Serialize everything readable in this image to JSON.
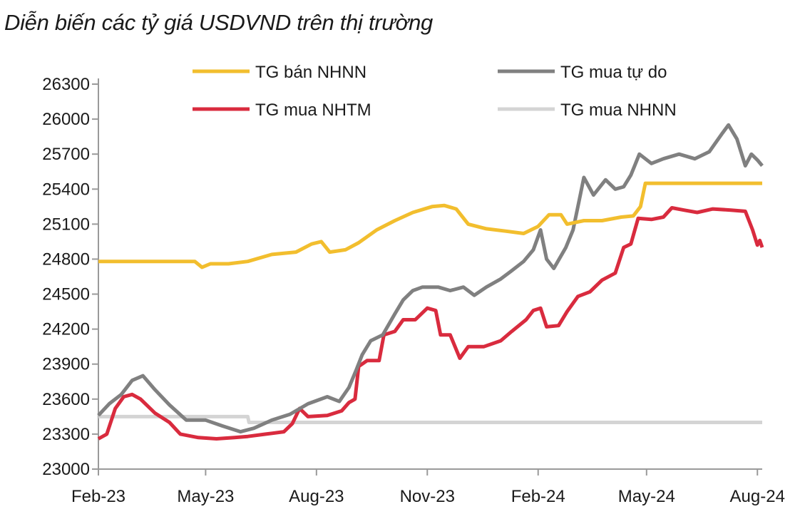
{
  "chart_data": {
    "type": "line",
    "title": "Diễn biến các tỷ giá USDVND trên thị trường",
    "xlabel": "",
    "ylabel": "",
    "x_ticks": [
      "Feb-23",
      "May-23",
      "Aug-23",
      "Nov-23",
      "Feb-24",
      "May-24",
      "Aug-24"
    ],
    "y_ticks": [
      23000,
      23300,
      23600,
      23900,
      24200,
      24500,
      24800,
      25100,
      25400,
      25700,
      26000,
      26300
    ],
    "ylim": [
      23000,
      26300
    ],
    "xlim": [
      "2023-02-01",
      "2024-08-05"
    ],
    "grid": false,
    "legend": "top",
    "series": [
      {
        "name": "TG bán NHNN",
        "color": "#F2BE2E",
        "points": [
          [
            "2023-02-01",
            24780
          ],
          [
            "2023-03-10",
            24780
          ],
          [
            "2023-04-22",
            24780
          ],
          [
            "2023-04-28",
            24730
          ],
          [
            "2023-05-05",
            24760
          ],
          [
            "2023-05-20",
            24760
          ],
          [
            "2023-06-05",
            24780
          ],
          [
            "2023-06-25",
            24840
          ],
          [
            "2023-07-15",
            24860
          ],
          [
            "2023-07-28",
            24930
          ],
          [
            "2023-08-05",
            24950
          ],
          [
            "2023-08-12",
            24860
          ],
          [
            "2023-08-25",
            24880
          ],
          [
            "2023-09-05",
            24940
          ],
          [
            "2023-09-20",
            25050
          ],
          [
            "2023-10-05",
            25130
          ],
          [
            "2023-10-20",
            25200
          ],
          [
            "2023-11-05",
            25250
          ],
          [
            "2023-11-15",
            25260
          ],
          [
            "2023-11-25",
            25230
          ],
          [
            "2023-12-05",
            25100
          ],
          [
            "2023-12-20",
            25060
          ],
          [
            "2024-01-05",
            25040
          ],
          [
            "2024-01-20",
            25020
          ],
          [
            "2024-02-01",
            25080
          ],
          [
            "2024-02-10",
            25180
          ],
          [
            "2024-02-20",
            25180
          ],
          [
            "2024-02-25",
            25100
          ],
          [
            "2024-03-10",
            25130
          ],
          [
            "2024-03-25",
            25130
          ],
          [
            "2024-04-10",
            25160
          ],
          [
            "2024-04-20",
            25170
          ],
          [
            "2024-04-26",
            25250
          ],
          [
            "2024-04-30",
            25450
          ],
          [
            "2024-08-05",
            25450
          ]
        ]
      },
      {
        "name": "TG mua tự do",
        "color": "#808080",
        "points": [
          [
            "2023-02-01",
            23460
          ],
          [
            "2023-02-10",
            23560
          ],
          [
            "2023-02-20",
            23640
          ],
          [
            "2023-03-01",
            23760
          ],
          [
            "2023-03-10",
            23800
          ],
          [
            "2023-03-20",
            23680
          ],
          [
            "2023-04-01",
            23550
          ],
          [
            "2023-04-15",
            23420
          ],
          [
            "2023-05-01",
            23420
          ],
          [
            "2023-05-15",
            23370
          ],
          [
            "2023-05-30",
            23320
          ],
          [
            "2023-06-10",
            23350
          ],
          [
            "2023-06-25",
            23420
          ],
          [
            "2023-07-10",
            23470
          ],
          [
            "2023-07-25",
            23560
          ],
          [
            "2023-08-10",
            23620
          ],
          [
            "2023-08-20",
            23580
          ],
          [
            "2023-08-28",
            23700
          ],
          [
            "2023-09-03",
            23850
          ],
          [
            "2023-09-08",
            23980
          ],
          [
            "2023-09-15",
            24100
          ],
          [
            "2023-09-25",
            24150
          ],
          [
            "2023-10-05",
            24330
          ],
          [
            "2023-10-12",
            24450
          ],
          [
            "2023-10-20",
            24530
          ],
          [
            "2023-10-28",
            24560
          ],
          [
            "2023-11-10",
            24560
          ],
          [
            "2023-11-20",
            24530
          ],
          [
            "2023-12-01",
            24560
          ],
          [
            "2023-12-10",
            24490
          ],
          [
            "2023-12-20",
            24560
          ],
          [
            "2024-01-01",
            24630
          ],
          [
            "2024-01-10",
            24700
          ],
          [
            "2024-01-20",
            24780
          ],
          [
            "2024-01-28",
            24880
          ],
          [
            "2024-02-03",
            25050
          ],
          [
            "2024-02-08",
            24800
          ],
          [
            "2024-02-14",
            24720
          ],
          [
            "2024-02-24",
            24900
          ],
          [
            "2024-03-01",
            25050
          ],
          [
            "2024-03-06",
            25300
          ],
          [
            "2024-03-10",
            25500
          ],
          [
            "2024-03-18",
            25350
          ],
          [
            "2024-03-28",
            25480
          ],
          [
            "2024-04-05",
            25400
          ],
          [
            "2024-04-12",
            25420
          ],
          [
            "2024-04-18",
            25520
          ],
          [
            "2024-04-25",
            25700
          ],
          [
            "2024-05-05",
            25620
          ],
          [
            "2024-05-15",
            25660
          ],
          [
            "2024-05-28",
            25700
          ],
          [
            "2024-06-10",
            25660
          ],
          [
            "2024-06-22",
            25720
          ],
          [
            "2024-07-03",
            25880
          ],
          [
            "2024-07-08",
            25950
          ],
          [
            "2024-07-15",
            25830
          ],
          [
            "2024-07-22",
            25600
          ],
          [
            "2024-07-27",
            25700
          ],
          [
            "2024-08-01",
            25650
          ],
          [
            "2024-08-05",
            25600
          ]
        ]
      },
      {
        "name": "TG mua NHTM",
        "color": "#D92B3E",
        "points": [
          [
            "2023-02-01",
            23260
          ],
          [
            "2023-02-08",
            23300
          ],
          [
            "2023-02-15",
            23520
          ],
          [
            "2023-02-22",
            23620
          ],
          [
            "2023-03-01",
            23640
          ],
          [
            "2023-03-08",
            23600
          ],
          [
            "2023-03-20",
            23480
          ],
          [
            "2023-04-01",
            23400
          ],
          [
            "2023-04-10",
            23300
          ],
          [
            "2023-04-25",
            23270
          ],
          [
            "2023-05-10",
            23260
          ],
          [
            "2023-05-25",
            23270
          ],
          [
            "2023-06-05",
            23280
          ],
          [
            "2023-06-20",
            23300
          ],
          [
            "2023-07-05",
            23320
          ],
          [
            "2023-07-12",
            23390
          ],
          [
            "2023-07-18",
            23520
          ],
          [
            "2023-07-25",
            23450
          ],
          [
            "2023-08-10",
            23460
          ],
          [
            "2023-08-22",
            23500
          ],
          [
            "2023-08-28",
            23570
          ],
          [
            "2023-09-02",
            23600
          ],
          [
            "2023-09-05",
            23880
          ],
          [
            "2023-09-12",
            23930
          ],
          [
            "2023-09-22",
            23930
          ],
          [
            "2023-09-26",
            24150
          ],
          [
            "2023-10-05",
            24180
          ],
          [
            "2023-10-12",
            24280
          ],
          [
            "2023-10-22",
            24280
          ],
          [
            "2023-11-01",
            24380
          ],
          [
            "2023-11-08",
            24360
          ],
          [
            "2023-11-12",
            24150
          ],
          [
            "2023-11-20",
            24150
          ],
          [
            "2023-11-28",
            23950
          ],
          [
            "2023-12-05",
            24050
          ],
          [
            "2023-12-18",
            24050
          ],
          [
            "2024-01-01",
            24100
          ],
          [
            "2024-01-10",
            24180
          ],
          [
            "2024-01-22",
            24280
          ],
          [
            "2024-01-28",
            24360
          ],
          [
            "2024-02-03",
            24380
          ],
          [
            "2024-02-08",
            24220
          ],
          [
            "2024-02-18",
            24230
          ],
          [
            "2024-02-25",
            24350
          ],
          [
            "2024-03-05",
            24480
          ],
          [
            "2024-03-15",
            24520
          ],
          [
            "2024-03-25",
            24620
          ],
          [
            "2024-04-05",
            24680
          ],
          [
            "2024-04-12",
            24900
          ],
          [
            "2024-04-18",
            24930
          ],
          [
            "2024-04-24",
            25150
          ],
          [
            "2024-05-05",
            25140
          ],
          [
            "2024-05-15",
            25160
          ],
          [
            "2024-05-22",
            25240
          ],
          [
            "2024-06-01",
            25220
          ],
          [
            "2024-06-12",
            25200
          ],
          [
            "2024-06-25",
            25230
          ],
          [
            "2024-07-10",
            25220
          ],
          [
            "2024-07-22",
            25210
          ],
          [
            "2024-07-28",
            25050
          ],
          [
            "2024-08-01",
            24920
          ],
          [
            "2024-08-03",
            24960
          ],
          [
            "2024-08-05",
            24900
          ]
        ]
      },
      {
        "name": "TG mua NHNN",
        "color": "#D4D4D4",
        "points": [
          [
            "2023-02-01",
            23450
          ],
          [
            "2023-06-05",
            23450
          ],
          [
            "2023-06-06",
            23400
          ],
          [
            "2024-08-05",
            23400
          ]
        ]
      }
    ]
  }
}
